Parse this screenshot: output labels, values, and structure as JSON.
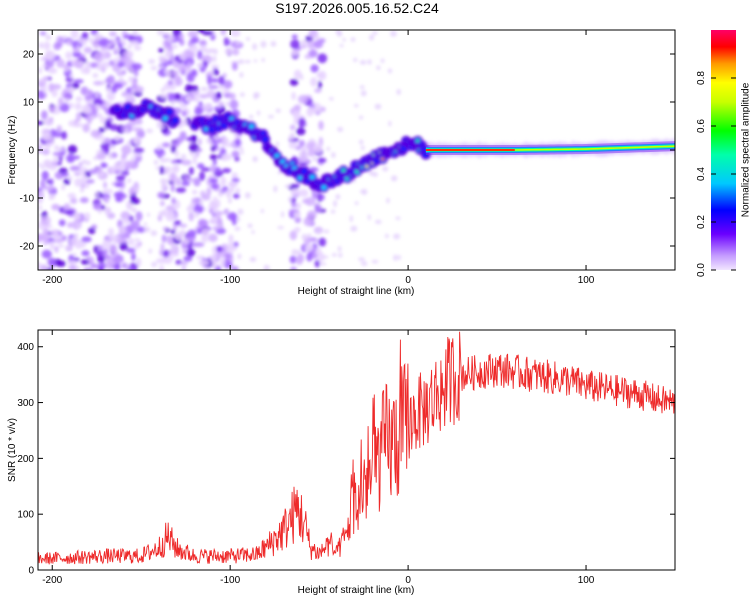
{
  "chart_data": [
    {
      "type": "heatmap",
      "title": "S197.2026.005.16.52.C24",
      "xlabel": "Height of straight line (km)",
      "ylabel": "Frequency (Hz)",
      "xlim": [
        -208,
        150
      ],
      "ylim": [
        -25,
        25
      ],
      "x_ticks": [
        -200,
        -100,
        0,
        100
      ],
      "y_ticks": [
        -20,
        -10,
        0,
        10,
        20
      ],
      "colorbar": {
        "label": "Normalized spectral amplitude",
        "range": [
          0.0,
          1.0
        ],
        "ticks": [
          "0.0",
          "0.2",
          "0.4",
          "0.6",
          "0.8"
        ],
        "tick_values": [
          0.0,
          0.2,
          0.4,
          0.6,
          0.8
        ]
      },
      "ridge": {
        "x": [
          -160,
          -145,
          -135,
          -115,
          -100,
          -90,
          -80,
          -70,
          -60,
          -50,
          -40,
          -30,
          -20,
          -10,
          0,
          5,
          10,
          30,
          60,
          100,
          150
        ],
        "y": [
          8,
          9,
          7,
          5,
          6,
          5,
          2,
          -3,
          -5,
          -7,
          -6,
          -4,
          -2,
          0,
          1,
          1.5,
          0,
          0,
          0,
          0.2,
          0.8
        ]
      }
    },
    {
      "type": "line",
      "xlabel": "Height of straight line (km)",
      "ylabel": "SNR (10 * v/v)",
      "xlim": [
        -208,
        150
      ],
      "ylim": [
        0,
        430
      ],
      "x_ticks": [
        -200,
        -100,
        0,
        100
      ],
      "y_ticks": [
        0,
        100,
        200,
        300,
        400
      ],
      "color": "#ee2a2a",
      "series": [
        {
          "name": "SNR",
          "x": [
            -208,
            -190,
            -170,
            -150,
            -140,
            -135,
            -130,
            -120,
            -100,
            -85,
            -80,
            -75,
            -70,
            -65,
            -62,
            -58,
            -55,
            -50,
            -45,
            -40,
            -37,
            -35,
            -32,
            -30,
            -28,
            -25,
            -22,
            -20,
            -18,
            -15,
            -12,
            -10,
            -5,
            0,
            5,
            10,
            15,
            20,
            25,
            30,
            40,
            50,
            60,
            70,
            80,
            90,
            100,
            110,
            120,
            130,
            140,
            150
          ],
          "values": [
            20,
            22,
            25,
            25,
            40,
            60,
            38,
            25,
            25,
            28,
            40,
            55,
            70,
            95,
            110,
            80,
            40,
            30,
            45,
            30,
            50,
            60,
            100,
            130,
            110,
            160,
            150,
            180,
            190,
            210,
            230,
            220,
            240,
            260,
            280,
            290,
            310,
            330,
            345,
            350,
            355,
            360,
            355,
            350,
            345,
            340,
            330,
            325,
            320,
            315,
            305,
            300
          ]
        }
      ]
    }
  ]
}
